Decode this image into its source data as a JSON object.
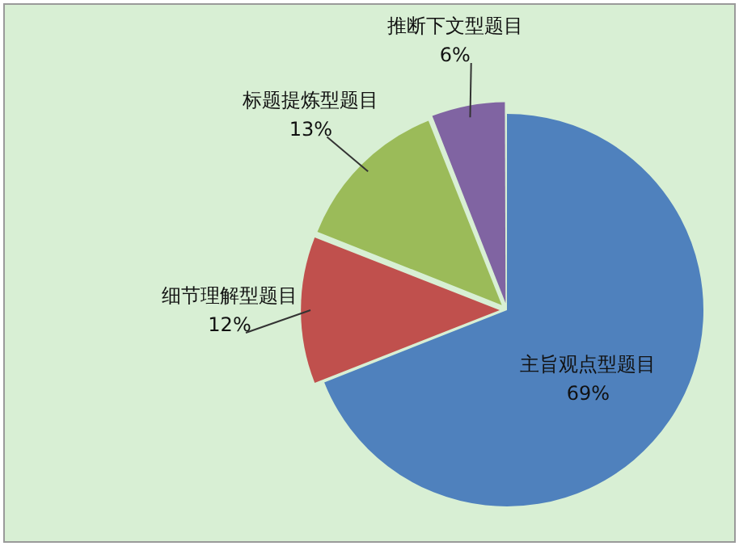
{
  "chart_data": {
    "type": "pie",
    "categories": [
      "主旨观点型题目",
      "细节理解型题目",
      "标题提炼型题目",
      "推断下文型题目"
    ],
    "values": [
      69,
      12,
      13,
      6
    ],
    "value_labels": [
      "69%",
      "12%",
      "13%",
      "6%"
    ],
    "colors": [
      "#4f81bd",
      "#c0504d",
      "#9bbb59",
      "#8064a2"
    ],
    "legend": false
  }
}
